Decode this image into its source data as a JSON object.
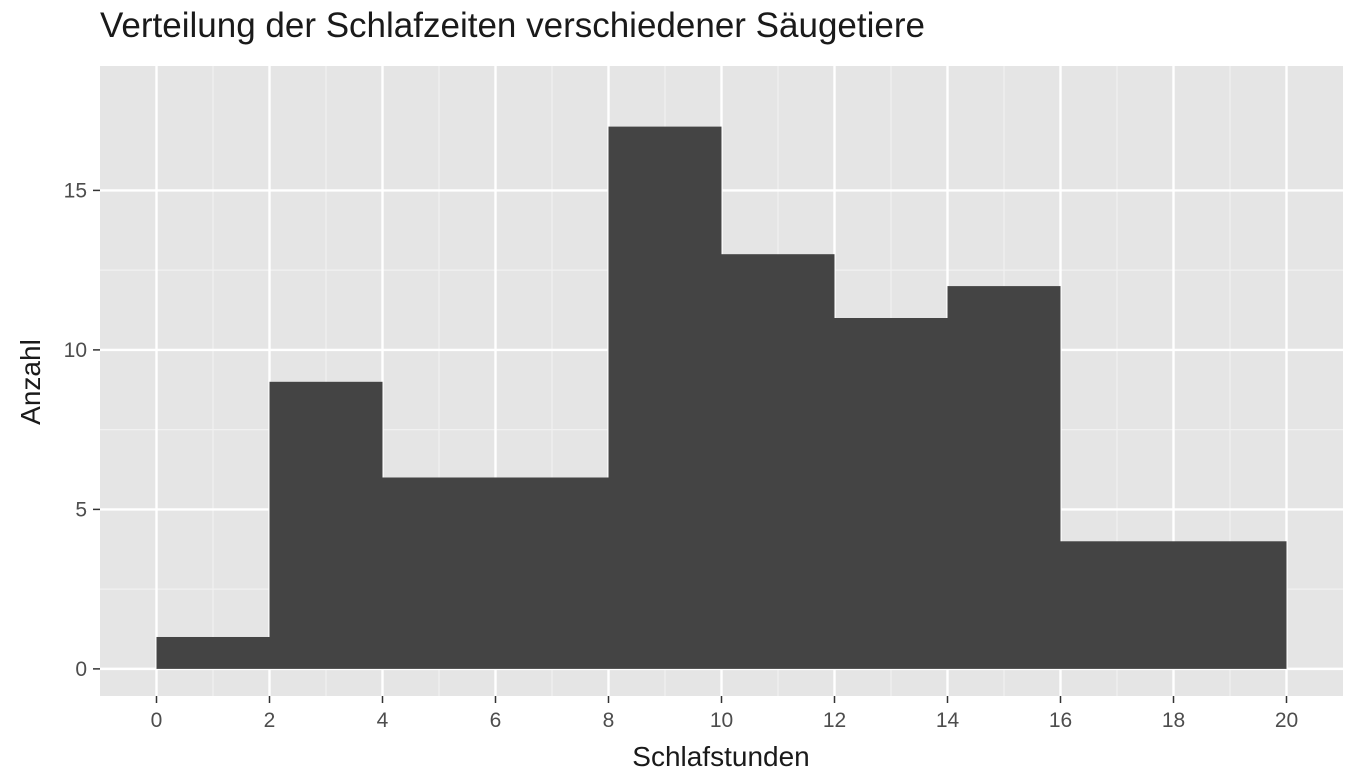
{
  "chart_data": {
    "type": "bar",
    "title": "Verteilung der Schlafzeiten verschiedener Säugetiere",
    "xlabel": "Schlafstunden",
    "ylabel": "Anzahl",
    "bins": [
      {
        "x0": 0,
        "x1": 2,
        "value": 1
      },
      {
        "x0": 2,
        "x1": 4,
        "value": 9
      },
      {
        "x0": 4,
        "x1": 6,
        "value": 6
      },
      {
        "x0": 6,
        "x1": 8,
        "value": 6
      },
      {
        "x0": 8,
        "x1": 10,
        "value": 17
      },
      {
        "x0": 10,
        "x1": 12,
        "value": 13
      },
      {
        "x0": 12,
        "x1": 14,
        "value": 11
      },
      {
        "x0": 14,
        "x1": 16,
        "value": 12
      },
      {
        "x0": 16,
        "x1": 18,
        "value": 4
      },
      {
        "x0": 18,
        "x1": 20,
        "value": 4
      }
    ],
    "xlim": [
      -1,
      21
    ],
    "ylim": [
      -0.85,
      18.9
    ],
    "xticks": [
      0,
      2,
      4,
      6,
      8,
      10,
      12,
      14,
      16,
      18,
      20
    ],
    "yticks": [
      0,
      5,
      10,
      15
    ],
    "xtick_labels": [
      "0",
      "2",
      "4",
      "6",
      "8",
      "10",
      "12",
      "14",
      "16",
      "18",
      "20"
    ],
    "ytick_labels": [
      "0",
      "5",
      "10",
      "15"
    ],
    "grid": true,
    "legend": "none",
    "colors": {
      "panel_background": "#e5e5e5",
      "grid_major": "#ffffff",
      "grid_minor": "#f1f1f1",
      "bar_fill": "#444444",
      "tick_label": "#4d4d4d",
      "tick_mark": "#333333",
      "text": "#1a1a1a"
    }
  }
}
